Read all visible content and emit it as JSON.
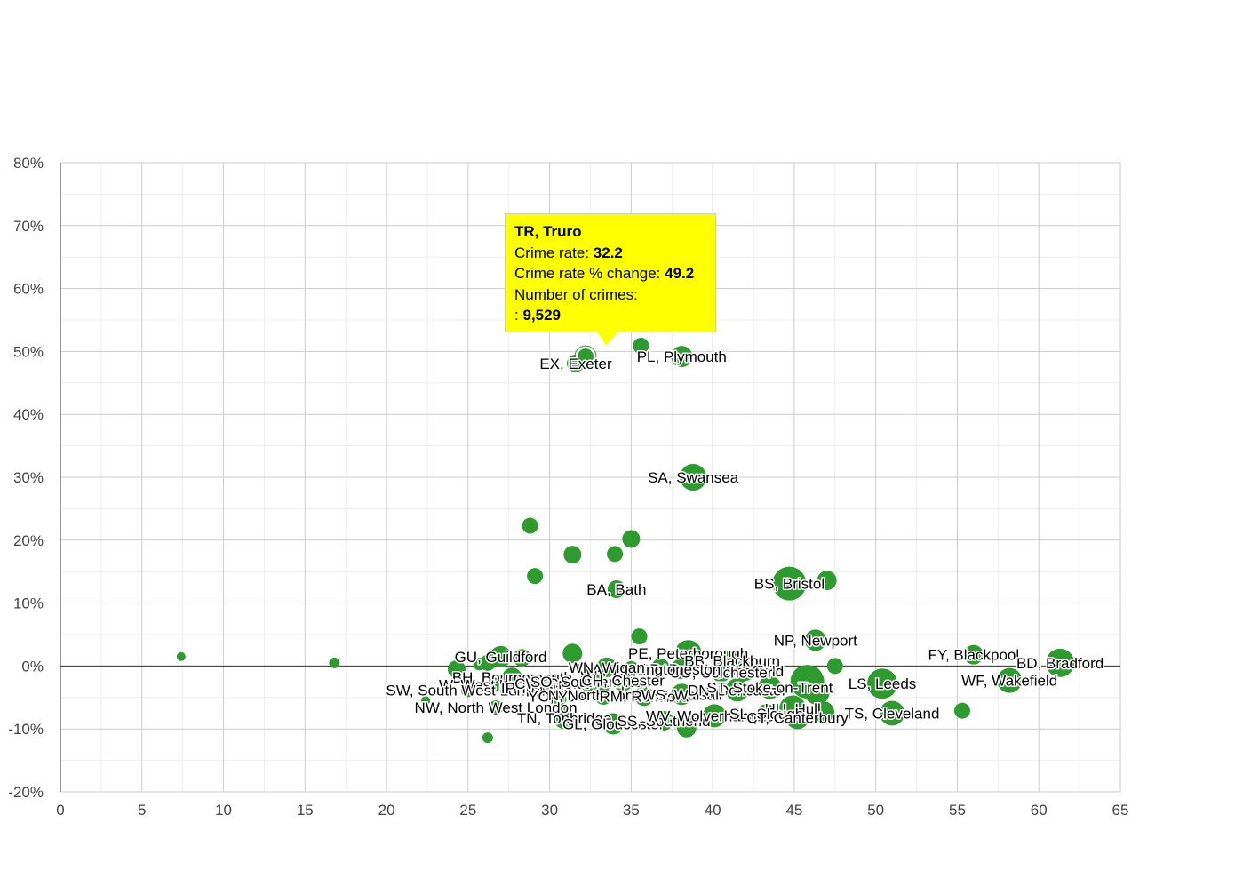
{
  "chart_data": {
    "type": "scatter",
    "xlim": [
      0,
      65
    ],
    "ylim": [
      -20,
      80
    ],
    "x_ticks": [
      0,
      5,
      10,
      15,
      20,
      25,
      30,
      35,
      40,
      45,
      50,
      55,
      60,
      65
    ],
    "y_ticks": [
      -20,
      -10,
      0,
      10,
      20,
      30,
      40,
      50,
      60,
      70,
      80
    ],
    "y_tick_suffix": "%",
    "grid": true,
    "minor_grid": true,
    "bubble_color": "#2e9b2e",
    "points": [
      {
        "x": 7.4,
        "y": 1.5,
        "r": 5,
        "label": ""
      },
      {
        "x": 16.8,
        "y": 0.5,
        "r": 6,
        "label": ""
      },
      {
        "x": 22.4,
        "y": -5.5,
        "r": 5,
        "label": ""
      },
      {
        "x": 26.2,
        "y": -11.4,
        "r": 6,
        "label": ""
      },
      {
        "x": 28.8,
        "y": 22.3,
        "r": 9,
        "label": ""
      },
      {
        "x": 29.1,
        "y": 14.3,
        "r": 9,
        "label": ""
      },
      {
        "x": 31.4,
        "y": 17.7,
        "r": 10,
        "label": ""
      },
      {
        "x": 34.0,
        "y": 17.8,
        "r": 9,
        "label": ""
      },
      {
        "x": 35.0,
        "y": 20.2,
        "r": 10,
        "label": ""
      },
      {
        "x": 34.1,
        "y": 12.2,
        "r": 10,
        "label": "BA, Bath"
      },
      {
        "x": 38.8,
        "y": 30.0,
        "r": 15,
        "label": "SA, Swansea"
      },
      {
        "x": 31.6,
        "y": 48.1,
        "r": 10,
        "label": "EX, Exeter"
      },
      {
        "x": 32.2,
        "y": 49.2,
        "r": 10,
        "label": "",
        "highlight": true
      },
      {
        "x": 35.6,
        "y": 50.9,
        "r": 9,
        "label": ""
      },
      {
        "x": 38.1,
        "y": 49.2,
        "r": 12,
        "label": "PL, Plymouth"
      },
      {
        "x": 34.9,
        "y": 71.3,
        "r": 4,
        "label": ""
      },
      {
        "x": 44.7,
        "y": 13.1,
        "r": 19,
        "label": "BS, Bristol"
      },
      {
        "x": 47.0,
        "y": 13.6,
        "r": 11,
        "label": ""
      },
      {
        "x": 46.3,
        "y": 4.1,
        "r": 12,
        "label": "NP, Newport"
      },
      {
        "x": 35.5,
        "y": 4.7,
        "r": 9,
        "label": ""
      },
      {
        "x": 56.0,
        "y": 1.8,
        "r": 11,
        "label": "FY, Blackpool"
      },
      {
        "x": 61.3,
        "y": 0.5,
        "r": 16,
        "label": "BD, Bradford"
      },
      {
        "x": 58.2,
        "y": -2.3,
        "r": 14,
        "label": "WF, Wakefield"
      },
      {
        "x": 50.4,
        "y": -2.8,
        "r": 17,
        "label": "LS, Leeds"
      },
      {
        "x": 51.0,
        "y": -7.5,
        "r": 14,
        "label": "TS, Cleveland"
      },
      {
        "x": 55.3,
        "y": -7.1,
        "r": 9,
        "label": ""
      },
      {
        "x": 47.5,
        "y": 0.0,
        "r": 9,
        "label": ""
      },
      {
        "x": 38.5,
        "y": 2.0,
        "r": 15,
        "label": "PE, Peterborough"
      },
      {
        "x": 41.2,
        "y": 0.8,
        "r": 12,
        "label": "BB, Blackburn"
      },
      {
        "x": 42.0,
        "y": -0.8,
        "r": 11,
        "label": "S, Sheffield"
      },
      {
        "x": 40.5,
        "y": -1.0,
        "r": 11,
        "label": "CO, Colchester"
      },
      {
        "x": 38.0,
        "y": -0.5,
        "r": 11,
        "label": "PR, Preston"
      },
      {
        "x": 36.8,
        "y": -0.2,
        "r": 10,
        "label": ""
      },
      {
        "x": 35.0,
        "y": -0.5,
        "r": 9,
        "label": "WA, Warrington"
      },
      {
        "x": 33.5,
        "y": -0.2,
        "r": 11,
        "label": "WN, Wigan"
      },
      {
        "x": 31.4,
        "y": 2.0,
        "r": 11,
        "label": ""
      },
      {
        "x": 27.0,
        "y": 1.5,
        "r": 12,
        "label": "GU, Guildford"
      },
      {
        "x": 28.3,
        "y": 1.3,
        "r": 10,
        "label": ""
      },
      {
        "x": 26.2,
        "y": 0.5,
        "r": 9,
        "label": ""
      },
      {
        "x": 25.7,
        "y": 0.3,
        "r": 7,
        "label": ""
      },
      {
        "x": 24.3,
        "y": -0.5,
        "r": 10,
        "label": ""
      },
      {
        "x": 27.7,
        "y": -1.8,
        "r": 11,
        "label": "BH, Bournemouth"
      },
      {
        "x": 26.6,
        "y": -3.0,
        "r": 8,
        "label": "W, West London"
      },
      {
        "x": 25.0,
        "y": -3.8,
        "r": 8,
        "label": "SW, South West London"
      },
      {
        "x": 29.2,
        "y": -3.5,
        "r": 10,
        "label": "IP, Ipswich"
      },
      {
        "x": 30.2,
        "y": -2.8,
        "r": 11,
        "label": "CW, Crewe"
      },
      {
        "x": 32.5,
        "y": -2.5,
        "r": 12,
        "label": "SO, Southampton"
      },
      {
        "x": 34.5,
        "y": -2.3,
        "r": 12,
        "label": "CH, Chester"
      },
      {
        "x": 26.7,
        "y": -6.6,
        "r": 8,
        "label": "NW, North West London"
      },
      {
        "x": 30.5,
        "y": -4.8,
        "r": 11,
        "label": "YO, York"
      },
      {
        "x": 33.3,
        "y": -4.6,
        "r": 11,
        "label": "N, North London"
      },
      {
        "x": 35.8,
        "y": -4.8,
        "r": 11,
        "label": "RM, Romford"
      },
      {
        "x": 38.1,
        "y": -4.5,
        "r": 12,
        "label": "WS, Walsall"
      },
      {
        "x": 41.5,
        "y": -3.8,
        "r": 13,
        "label": "DN, Doncaster"
      },
      {
        "x": 43.5,
        "y": -3.4,
        "r": 13,
        "label": "ST, Stoke-on-Trent"
      },
      {
        "x": 45.8,
        "y": -2.5,
        "r": 19,
        "label": ""
      },
      {
        "x": 46.4,
        "y": -4.2,
        "r": 14,
        "label": ""
      },
      {
        "x": 44.9,
        "y": -6.8,
        "r": 15,
        "label": "HU, Hull"
      },
      {
        "x": 46.8,
        "y": -7.3,
        "r": 12,
        "label": ""
      },
      {
        "x": 30.9,
        "y": -8.3,
        "r": 12,
        "label": "TN, Tonbridge"
      },
      {
        "x": 33.9,
        "y": -9.2,
        "r": 12,
        "label": "GL, Gloucester"
      },
      {
        "x": 37.0,
        "y": -8.7,
        "r": 11,
        "label": "SS, Southend"
      },
      {
        "x": 38.4,
        "y": -9.8,
        "r": 11,
        "label": ""
      },
      {
        "x": 40.1,
        "y": -7.9,
        "r": 13,
        "label": "WV, Wolverhampton"
      },
      {
        "x": 43.3,
        "y": -7.6,
        "r": 11,
        "label": "SL, Slough"
      },
      {
        "x": 45.2,
        "y": -8.2,
        "r": 13,
        "label": "CT, Canterbury"
      }
    ],
    "tooltip": {
      "title": "TR, Truro",
      "crime_rate_label": "Crime rate: ",
      "crime_rate_value": "32.2",
      "pct_change_label": "Crime rate % change: ",
      "pct_change_value": "49.2",
      "crimes_label": "Number of crimes:",
      "crimes_prefix": ": ",
      "crimes_value": "9,529"
    }
  }
}
